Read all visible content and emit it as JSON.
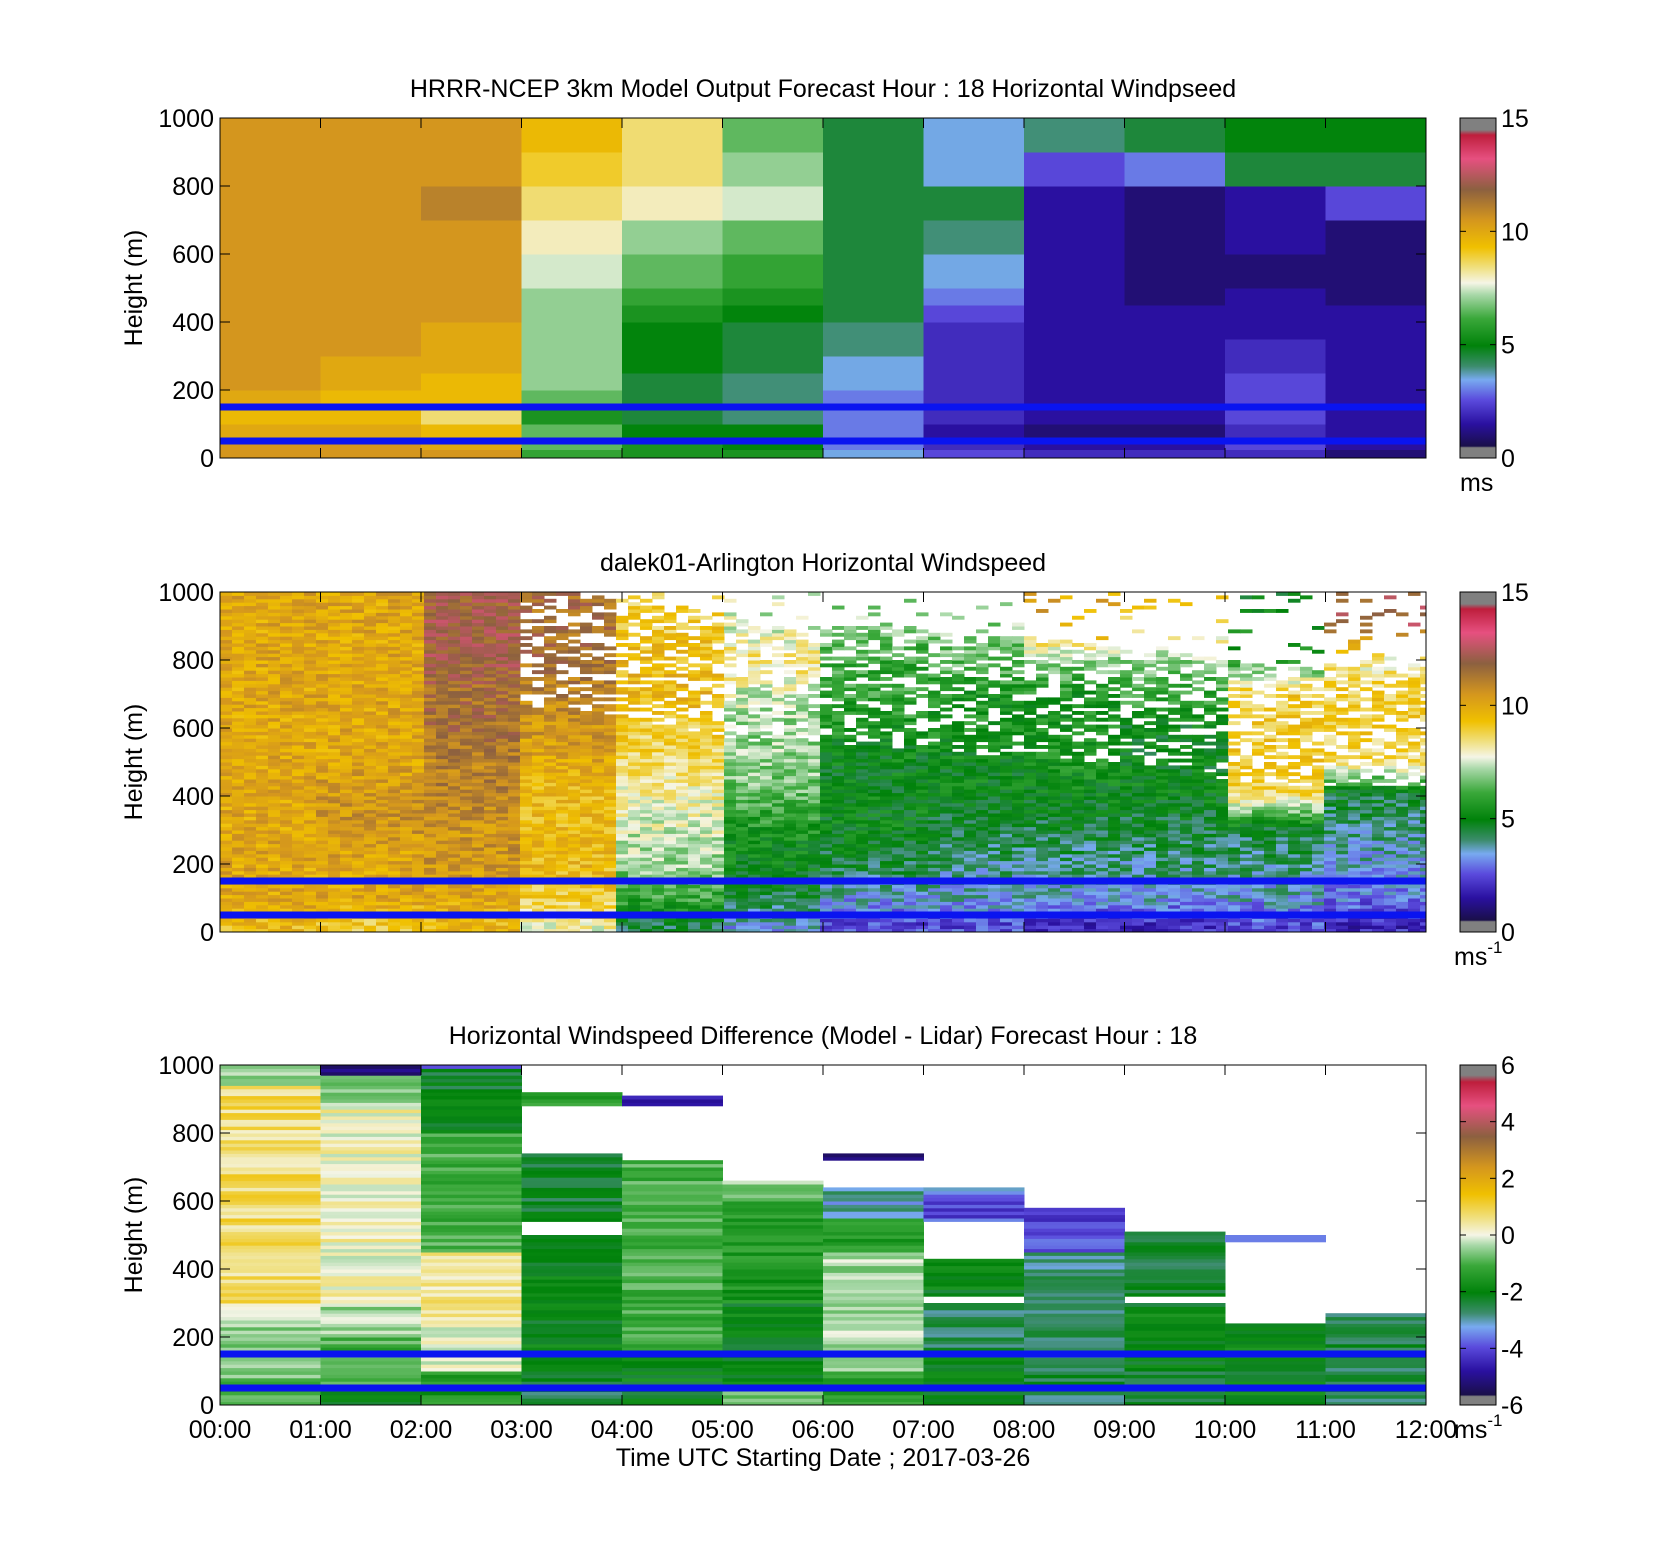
{
  "figure": {
    "x_tick_labels": [
      "00:00",
      "01:00",
      "02:00",
      "03:00",
      "04:00",
      "05:00",
      "06:00",
      "07:00",
      "08:00",
      "09:00",
      "10:00",
      "11:00",
      "12:00"
    ],
    "xlabel": "Time UTC  Starting Date ; 2017-03-26"
  },
  "colors": {
    "reference_lines": "#0a14f0",
    "missing": "#ffffff"
  },
  "chart_data": [
    {
      "type": "heatmap",
      "title": "HRRR-NCEP 3km Model Output   Forecast Hour : 18 Horizontal Windpseed",
      "ylabel": "Height (m)",
      "ylim": [
        0,
        1000
      ],
      "y_ticks": [
        0,
        200,
        400,
        600,
        800,
        1000
      ],
      "x_ticks": [
        "00:00",
        "01:00",
        "02:00",
        "03:00",
        "04:00",
        "05:00",
        "06:00",
        "07:00",
        "08:00",
        "09:00",
        "10:00",
        "11:00",
        "12:00"
      ],
      "x_tick_labels_shown": false,
      "colorbar": {
        "min": 0,
        "max": 15,
        "ticks": [
          0,
          5,
          10,
          15
        ],
        "unit_base": "ms",
        "unit_sup": ""
      },
      "reference_lines_m": [
        150,
        50
      ],
      "heights_m": [
        0,
        25,
        50,
        100,
        150,
        200,
        250,
        300,
        350,
        400,
        450,
        500,
        600,
        700,
        800,
        900,
        1000
      ],
      "values": [
        [
          10.5,
          10.5,
          10.5,
          6.0,
          5.5,
          5.5,
          3.5,
          2.5,
          2.0,
          2.0,
          2.0,
          1.0
        ],
        [
          10.5,
          10.5,
          10.0,
          6.5,
          5.5,
          5.0,
          3.0,
          2.0,
          1.5,
          1.5,
          2.5,
          1.5
        ],
        [
          10.0,
          10.0,
          9.5,
          6.5,
          5.0,
          5.0,
          3.0,
          1.5,
          1.0,
          1.0,
          2.0,
          1.5
        ],
        [
          9.5,
          9.5,
          8.5,
          5.5,
          4.5,
          4.0,
          3.0,
          2.0,
          1.5,
          1.5,
          2.5,
          1.5
        ],
        [
          10.0,
          9.5,
          9.5,
          6.5,
          4.5,
          4.0,
          3.0,
          2.0,
          1.5,
          1.5,
          2.5,
          1.5
        ],
        [
          10.5,
          10.0,
          9.5,
          7.0,
          4.5,
          4.0,
          3.5,
          2.0,
          1.5,
          1.5,
          2.5,
          1.5
        ],
        [
          10.5,
          10.0,
          10.0,
          7.0,
          5.0,
          4.5,
          3.5,
          2.0,
          1.5,
          1.5,
          2.0,
          1.5
        ],
        [
          10.5,
          10.5,
          10.0,
          7.0,
          5.0,
          4.5,
          4.0,
          2.0,
          1.5,
          1.5,
          2.0,
          1.5
        ],
        [
          10.5,
          10.5,
          10.0,
          7.0,
          5.0,
          4.5,
          4.0,
          2.0,
          1.5,
          1.5,
          1.5,
          1.5
        ],
        [
          10.5,
          10.5,
          10.5,
          7.0,
          5.5,
          5.0,
          4.5,
          2.5,
          1.5,
          1.5,
          1.5,
          1.5
        ],
        [
          10.5,
          10.5,
          10.5,
          7.0,
          6.0,
          5.5,
          4.5,
          3.0,
          1.5,
          1.0,
          1.5,
          1.0
        ],
        [
          10.5,
          10.5,
          10.5,
          7.5,
          6.5,
          6.0,
          4.5,
          3.5,
          1.5,
          1.0,
          1.0,
          1.0
        ],
        [
          10.5,
          10.5,
          10.5,
          8.0,
          7.0,
          6.5,
          4.5,
          4.0,
          1.5,
          1.0,
          1.5,
          1.0
        ],
        [
          10.5,
          10.5,
          11.0,
          8.5,
          8.0,
          7.5,
          4.5,
          4.5,
          1.5,
          1.0,
          1.5,
          2.5
        ],
        [
          10.5,
          10.5,
          10.5,
          9.0,
          8.5,
          7.0,
          4.5,
          3.5,
          2.5,
          3.0,
          4.5,
          4.5
        ],
        [
          10.5,
          10.5,
          10.5,
          9.5,
          8.5,
          6.5,
          4.5,
          3.5,
          4.0,
          4.5,
          5.0,
          5.0
        ]
      ]
    },
    {
      "type": "heatmap",
      "title": "dalek01-Arlington  Horizontal Windspeed",
      "ylabel": "Height (m)",
      "ylim": [
        0,
        1000
      ],
      "y_ticks": [
        0,
        200,
        400,
        600,
        800,
        1000
      ],
      "x_ticks": [
        "00:00",
        "01:00",
        "02:00",
        "03:00",
        "04:00",
        "05:00",
        "06:00",
        "07:00",
        "08:00",
        "09:00",
        "10:00",
        "11:00",
        "12:00"
      ],
      "x_tick_labels_shown": false,
      "colorbar": {
        "min": 0,
        "max": 15,
        "ticks": [
          0,
          5,
          10,
          15
        ],
        "unit_base": "ms",
        "unit_sup": "-1"
      },
      "reference_lines_m": [
        150,
        50
      ],
      "hour_centers": [
        0.5,
        1.5,
        2.5,
        3.5,
        4.5,
        5.5,
        6.5,
        7.5,
        8.5,
        9.5,
        10.5,
        11.5
      ],
      "hourly_profile": {
        "heights_m": [
          25,
          100,
          200,
          300,
          400,
          500,
          600,
          700,
          800,
          900
        ],
        "values": [
          [
            9.5,
            10.0,
            10.0,
            10.0,
            10.0,
            10.0,
            10.0,
            10.0,
            10.0,
            10.0
          ],
          [
            9.0,
            10.0,
            10.0,
            10.5,
            10.5,
            10.0,
            10.0,
            10.0,
            10.0,
            10.0
          ],
          [
            9.5,
            10.0,
            10.5,
            10.5,
            11.0,
            11.0,
            11.5,
            11.5,
            12.0,
            12.0
          ],
          [
            8.0,
            9.0,
            9.5,
            9.5,
            9.5,
            10.0,
            10.5,
            11.0,
            11.5,
            11.5
          ],
          [
            4.5,
            6.0,
            7.0,
            7.5,
            8.0,
            8.5,
            9.0,
            9.5,
            9.5,
            9.0
          ],
          [
            3.5,
            4.5,
            5.0,
            5.5,
            6.5,
            7.0,
            7.0,
            7.5,
            8.5,
            7.5
          ],
          [
            2.5,
            3.5,
            4.5,
            5.0,
            5.0,
            5.0,
            5.5,
            6.0,
            6.0,
            7.0
          ],
          [
            2.5,
            3.5,
            4.0,
            4.5,
            5.0,
            5.0,
            5.5,
            5.5,
            6.5,
            7.0
          ],
          [
            2.0,
            3.5,
            4.0,
            4.5,
            5.0,
            5.5,
            5.5,
            5.5,
            7.0,
            10.0
          ],
          [
            2.0,
            3.5,
            4.0,
            4.5,
            5.0,
            5.0,
            5.0,
            6.0,
            7.0,
            9.0
          ],
          [
            2.5,
            3.5,
            4.0,
            4.5,
            8.5,
            9.0,
            9.0,
            9.0,
            6.0,
            5.0
          ],
          [
            2.0,
            3.0,
            3.5,
            4.0,
            4.5,
            8.5,
            9.0,
            9.0,
            8.0,
            12.0
          ]
        ]
      },
      "data_top_m": [
        1000,
        1000,
        1000,
        1000,
        950,
        900,
        900,
        870,
        860,
        820,
        780,
        780
      ]
    },
    {
      "type": "heatmap",
      "title": "Horizontal Windspeed Difference (Model - Lidar) Forecast Hour : 18",
      "ylabel": "Height (m)",
      "xlabel": "Time UTC  Starting Date ; 2017-03-26",
      "ylim": [
        0,
        1000
      ],
      "y_ticks": [
        0,
        200,
        400,
        600,
        800,
        1000
      ],
      "x_ticks": [
        "00:00",
        "01:00",
        "02:00",
        "03:00",
        "04:00",
        "05:00",
        "06:00",
        "07:00",
        "08:00",
        "09:00",
        "10:00",
        "11:00",
        "12:00"
      ],
      "x_tick_labels_shown": true,
      "colorbar": {
        "min": -6,
        "max": 6,
        "ticks": [
          -6,
          -4,
          -2,
          0,
          2,
          4,
          6
        ],
        "unit_base": "ms",
        "unit_sup": "-1"
      },
      "reference_lines_m": [
        150,
        50
      ],
      "columns": [
        {
          "hour": "00:00",
          "segments": [
            [
              0,
              80,
              -1.0
            ],
            [
              80,
              240,
              -0.5
            ],
            [
              240,
              300,
              0.0
            ],
            [
              300,
              940,
              0.8
            ],
            [
              940,
              1000,
              -0.5
            ]
          ]
        },
        {
          "hour": "01:00",
          "segments": [
            [
              0,
              60,
              -2.0
            ],
            [
              60,
              200,
              -1.0
            ],
            [
              200,
              300,
              -0.3
            ],
            [
              300,
              880,
              0.3
            ],
            [
              880,
              970,
              -0.5
            ],
            [
              970,
              1000,
              -5.0
            ]
          ]
        },
        {
          "hour": "02:00",
          "segments": [
            [
              0,
              100,
              -1.5
            ],
            [
              100,
              250,
              0.2
            ],
            [
              250,
              450,
              0.6
            ],
            [
              450,
              800,
              -1.0
            ],
            [
              800,
              990,
              -2.2
            ],
            [
              990,
              1000,
              -3.5
            ]
          ]
        },
        {
          "hour": "03:00",
          "segments": [
            [
              0,
              100,
              -2.5
            ],
            [
              100,
              500,
              -2.0
            ],
            [
              500,
              540,
              null
            ],
            [
              540,
              740,
              -2.3
            ],
            [
              740,
              880,
              null
            ],
            [
              880,
              920,
              -1.5
            ]
          ]
        },
        {
          "hour": "04:00",
          "segments": [
            [
              0,
              150,
              -2.0
            ],
            [
              150,
              720,
              -1.0
            ],
            [
              720,
              880,
              null
            ],
            [
              880,
              910,
              -4.5
            ]
          ]
        },
        {
          "hour": "05:00",
          "segments": [
            [
              0,
              50,
              -0.5
            ],
            [
              50,
              300,
              -2.0
            ],
            [
              300,
              600,
              -1.5
            ],
            [
              600,
              660,
              -0.5
            ]
          ]
        },
        {
          "hour": "06:00",
          "segments": [
            [
              0,
              100,
              -1.5
            ],
            [
              100,
              450,
              -0.3
            ],
            [
              450,
              550,
              -1.5
            ],
            [
              550,
              640,
              -3.0
            ],
            [
              640,
              720,
              null
            ],
            [
              720,
              740,
              -5.0
            ]
          ]
        },
        {
          "hour": "07:00",
          "segments": [
            [
              0,
              150,
              -2.0
            ],
            [
              150,
              300,
              -2.5
            ],
            [
              300,
              320,
              null
            ],
            [
              320,
              430,
              -2.0
            ],
            [
              430,
              540,
              null
            ],
            [
              540,
              600,
              -4.0
            ],
            [
              600,
              640,
              -3.5
            ]
          ]
        },
        {
          "hour": "08:00",
          "segments": [
            [
              0,
              100,
              -2.5
            ],
            [
              100,
              450,
              -2.8
            ],
            [
              450,
              580,
              -4.0
            ]
          ]
        },
        {
          "hour": "09:00",
          "segments": [
            [
              0,
              100,
              -2.5
            ],
            [
              100,
              300,
              -2.0
            ],
            [
              300,
              320,
              null
            ],
            [
              320,
              510,
              -2.5
            ],
            [
              510,
              1000,
              null
            ]
          ]
        },
        {
          "hour": "10:00",
          "segments": [
            [
              0,
              240,
              -2.0
            ],
            [
              240,
              480,
              null
            ],
            [
              480,
              500,
              -3.5
            ]
          ]
        },
        {
          "hour": "11:00",
          "segments": [
            [
              0,
              270,
              -2.5
            ]
          ]
        }
      ]
    }
  ]
}
